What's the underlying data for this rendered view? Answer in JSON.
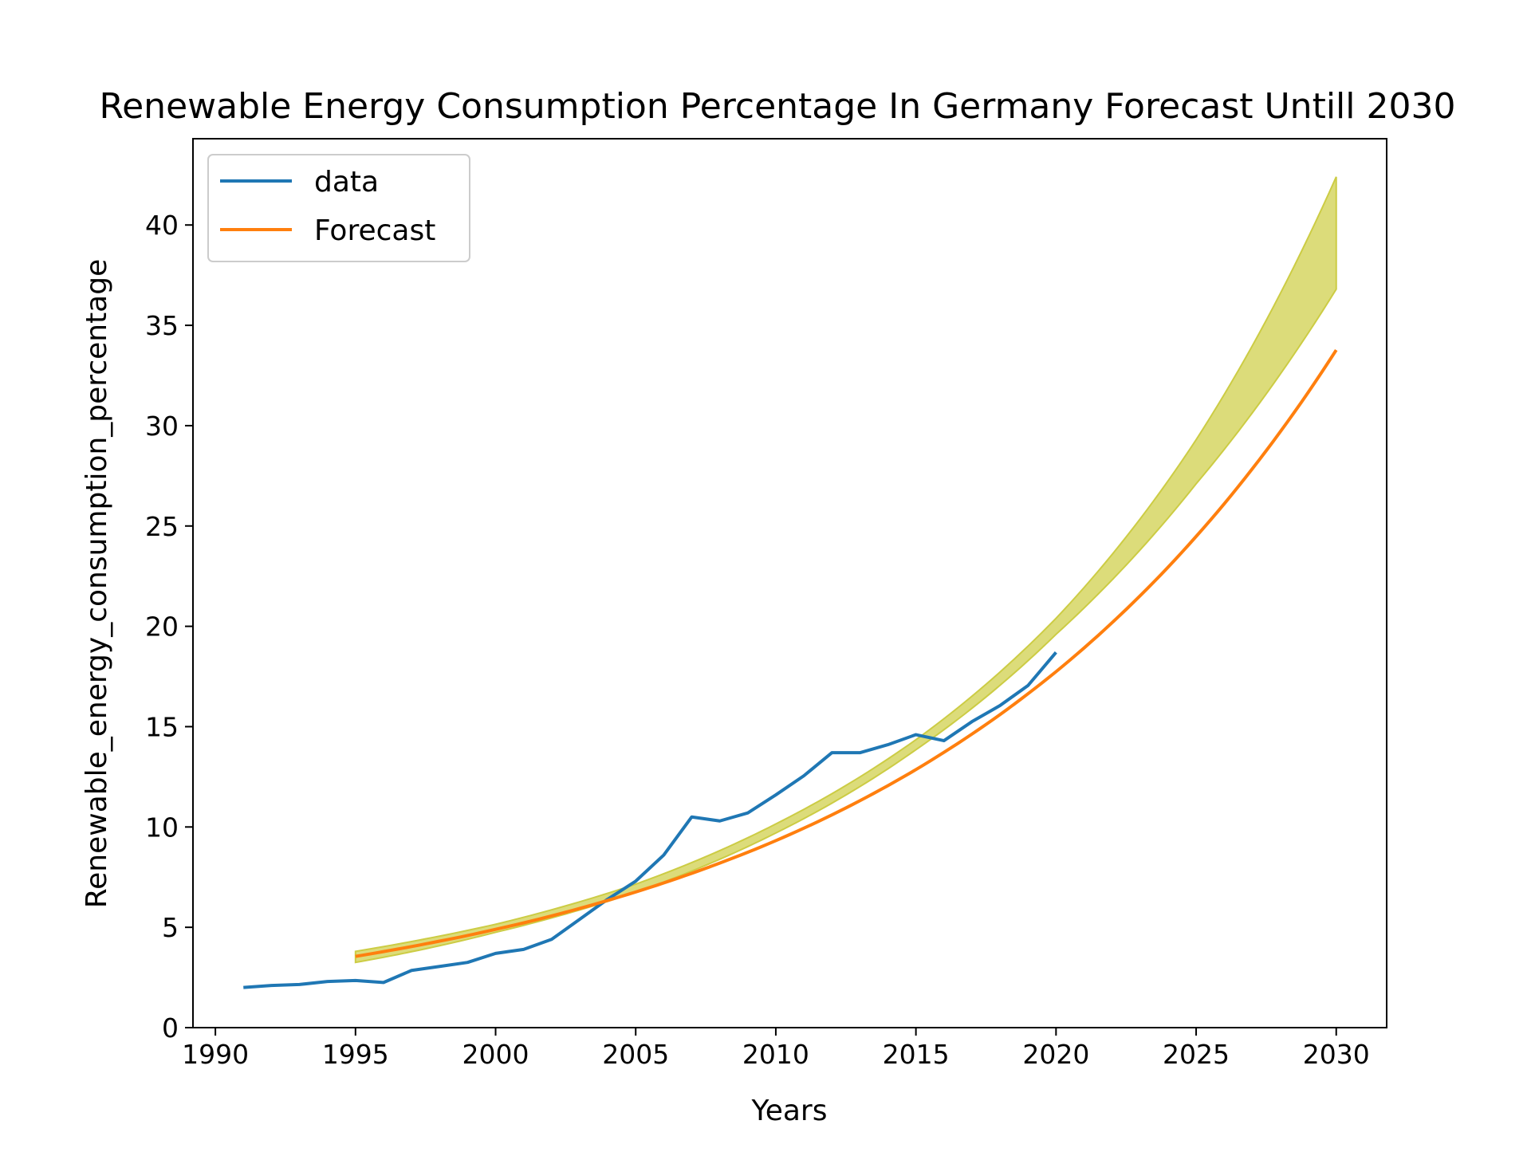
{
  "chart_data": {
    "type": "line",
    "title": "Renewable Energy Consumption Percentage In Germany Forecast Untill 2030",
    "xlabel": "Years",
    "ylabel": "Renewable_energy_consumption_percentage",
    "xlim": [
      1989.2,
      2031.8
    ],
    "ylim": [
      0,
      44.3
    ],
    "xticks": [
      1990,
      1995,
      2000,
      2005,
      2010,
      2015,
      2020,
      2025,
      2030
    ],
    "yticks": [
      0,
      5,
      10,
      15,
      20,
      25,
      30,
      35,
      40
    ],
    "grid": false,
    "legend_position": "top-left",
    "colors": {
      "data": "#1f77b4",
      "forecast": "#ff7f0e",
      "band_fill": "#dcdc7a",
      "band_edge": "#cccc44"
    },
    "series": [
      {
        "name": "data",
        "x": [
          1991,
          1992,
          1993,
          1994,
          1995,
          1996,
          1997,
          1998,
          1999,
          2000,
          2001,
          2002,
          2003,
          2004,
          2005,
          2006,
          2007,
          2008,
          2009,
          2010,
          2011,
          2012,
          2013,
          2014,
          2015,
          2016,
          2017,
          2018,
          2019,
          2020
        ],
        "values": [
          2.0,
          2.1,
          2.15,
          2.3,
          2.35,
          2.25,
          2.85,
          3.05,
          3.25,
          3.7,
          3.9,
          4.4,
          5.4,
          6.4,
          7.3,
          8.6,
          10.5,
          10.3,
          10.7,
          11.6,
          12.55,
          13.7,
          13.7,
          14.1,
          14.6,
          14.3,
          15.25,
          16.05,
          17.05,
          18.7
        ]
      },
      {
        "name": "Forecast",
        "x": [
          1995,
          1996,
          1997,
          1998,
          1999,
          2000,
          2001,
          2002,
          2003,
          2004,
          2005,
          2006,
          2007,
          2008,
          2009,
          2010,
          2011,
          2012,
          2013,
          2014,
          2015,
          2016,
          2017,
          2018,
          2019,
          2020,
          2021,
          2022,
          2023,
          2024,
          2025,
          2026,
          2027,
          2028,
          2029,
          2030
        ],
        "values": [
          3.55,
          3.79,
          4.04,
          4.31,
          4.59,
          4.9,
          5.22,
          5.57,
          5.94,
          6.34,
          6.76,
          7.21,
          7.69,
          8.2,
          8.74,
          9.32,
          9.94,
          10.6,
          11.31,
          12.06,
          12.86,
          13.72,
          14.63,
          15.6,
          16.64,
          17.74,
          18.92,
          20.18,
          21.52,
          22.95,
          24.48,
          26.1,
          27.84,
          29.69,
          31.66,
          33.77
        ]
      }
    ],
    "confidence_band": {
      "x": [
        1995,
        2000,
        2005,
        2010,
        2015,
        2020,
        2025,
        2030
      ],
      "lower": [
        3.25,
        4.75,
        6.75,
        9.7,
        13.85,
        19.6,
        27.1,
        36.8
      ],
      "upper": [
        3.8,
        5.15,
        7.15,
        10.15,
        14.35,
        20.4,
        29.3,
        42.4
      ]
    }
  }
}
